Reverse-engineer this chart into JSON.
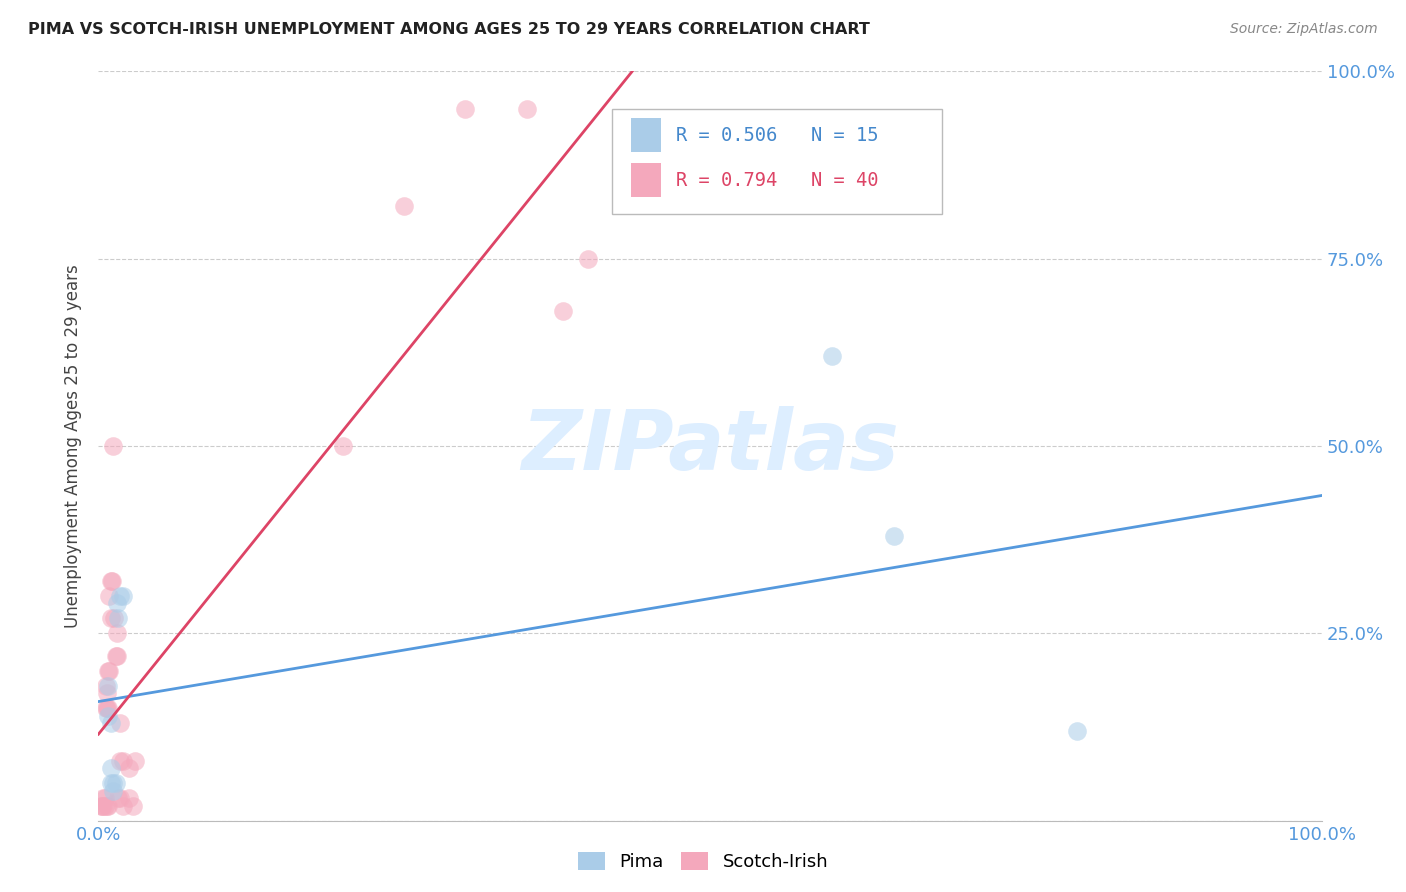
{
  "title": "PIMA VS SCOTCH-IRISH UNEMPLOYMENT AMONG AGES 25 TO 29 YEARS CORRELATION CHART",
  "source": "Source: ZipAtlas.com",
  "ylabel": "Unemployment Among Ages 25 to 29 years",
  "pima_R": 0.506,
  "pima_N": 15,
  "scotch_R": 0.794,
  "scotch_N": 40,
  "pima_color": "#aacce8",
  "scotch_color": "#f4a8bc",
  "pima_edge_color": "#6699cc",
  "scotch_edge_color": "#cc6688",
  "pima_line_color": "#5599dd",
  "scotch_line_color": "#dd4466",
  "legend_text_pima_color": "#4488cc",
  "legend_text_scotch_color": "#dd4466",
  "tick_color": "#5599dd",
  "title_color": "#222222",
  "source_color": "#888888",
  "watermark_text": "ZIPatlas",
  "watermark_color": "#ddeeff",
  "background_color": "#ffffff",
  "grid_color": "#cccccc",
  "pima_points_x": [
    0.8,
    0.8,
    1.0,
    1.0,
    1.0,
    1.2,
    1.2,
    1.4,
    1.5,
    1.6,
    1.8,
    2.0,
    60.0,
    65.0,
    80.0
  ],
  "pima_points_y": [
    18.0,
    14.0,
    13.0,
    7.0,
    5.0,
    5.0,
    4.0,
    5.0,
    29.0,
    27.0,
    30.0,
    30.0,
    62.0,
    38.0,
    12.0
  ],
  "scotch_points_x": [
    0.2,
    0.3,
    0.4,
    0.4,
    0.5,
    0.5,
    0.6,
    0.6,
    0.7,
    0.7,
    0.7,
    0.8,
    0.8,
    0.8,
    0.9,
    0.9,
    1.0,
    1.0,
    1.1,
    1.2,
    1.3,
    1.4,
    1.5,
    1.5,
    1.6,
    1.8,
    1.8,
    1.8,
    2.0,
    2.0,
    2.5,
    2.5,
    2.8,
    3.0,
    20.0,
    25.0,
    30.0,
    35.0,
    38.0,
    40.0
  ],
  "scotch_points_y": [
    2.0,
    2.0,
    2.0,
    3.0,
    2.0,
    3.0,
    15.0,
    18.0,
    2.0,
    15.0,
    17.0,
    2.0,
    15.0,
    20.0,
    20.0,
    30.0,
    27.0,
    32.0,
    32.0,
    50.0,
    27.0,
    22.0,
    22.0,
    25.0,
    3.0,
    3.0,
    8.0,
    13.0,
    8.0,
    2.0,
    7.0,
    3.0,
    2.0,
    8.0,
    50.0,
    82.0,
    95.0,
    95.0,
    68.0,
    75.0
  ],
  "xlim": [
    0,
    100
  ],
  "ylim": [
    0,
    100
  ],
  "xticks": [
    0,
    25,
    50,
    75,
    100
  ],
  "yticks": [
    0,
    25,
    50,
    75,
    100
  ],
  "xtick_labels": [
    "0.0%",
    "",
    "",
    "",
    "100.0%"
  ],
  "ytick_labels_right": [
    "",
    "25.0%",
    "50.0%",
    "75.0%",
    "100.0%"
  ],
  "marker_size": 180,
  "marker_alpha": 0.55
}
